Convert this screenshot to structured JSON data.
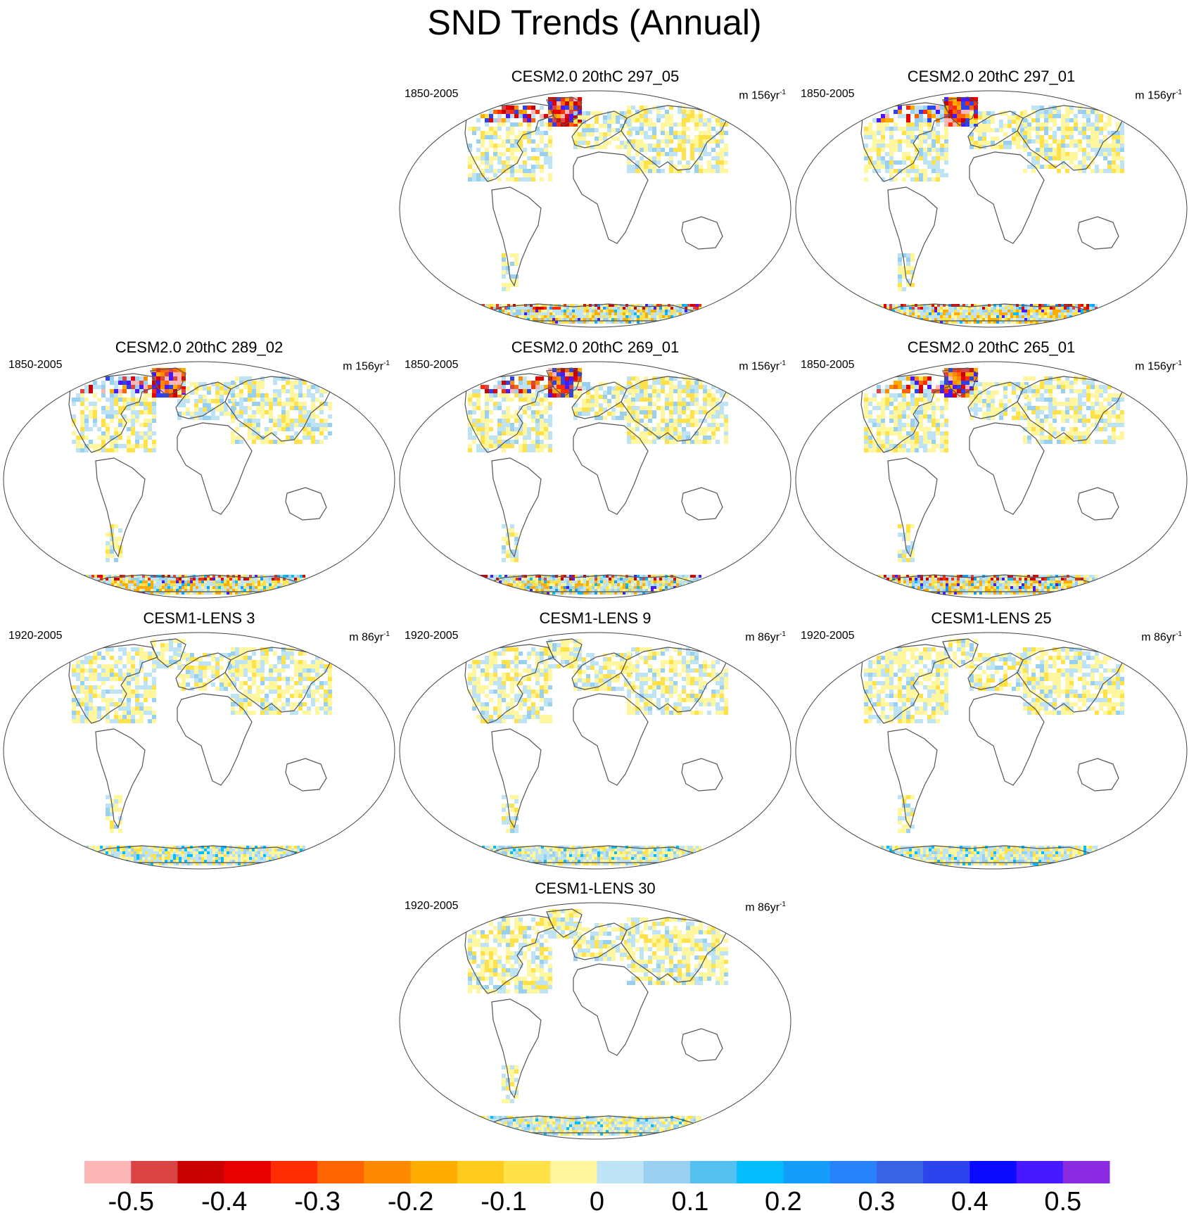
{
  "title": "SND Trends (Annual)",
  "chart_data": {
    "type": "heatmap",
    "title": "SND Trends (Annual)",
    "projection": "global map",
    "colorbar": {
      "colors": [
        "#fdb6b6",
        "#db4444",
        "#c80000",
        "#e60000",
        "#ff2d00",
        "#ff6400",
        "#ff8a00",
        "#ffac00",
        "#ffcb1e",
        "#ffe24a",
        "#fff6a0",
        "#bde3f5",
        "#9ad0ef",
        "#55c1f0",
        "#03bdfd",
        "#149dfa",
        "#2783fc",
        "#3863e4",
        "#2d43ee",
        "#0a0aff",
        "#4619ff",
        "#8a2be2"
      ],
      "tick_labels": [
        "-0.5",
        "-0.4",
        "-0.3",
        "-0.2",
        "-0.1",
        "0",
        "0.1",
        "0.2",
        "0.3",
        "0.4",
        "0.5"
      ],
      "range": [
        -0.55,
        0.55
      ]
    },
    "panels": [
      {
        "title": "CESM2.0 20thC 297_05",
        "period": "1850-2005",
        "units": "m 156yr",
        "exp": "-1",
        "ant": "strong"
      },
      {
        "title": "CESM2.0 20thC 297_01",
        "period": "1850-2005",
        "units": "m 156yr",
        "exp": "-1",
        "ant": "strong"
      },
      {
        "title": "CESM2.0 20thC 289_02",
        "period": "1850-2005",
        "units": "m 156yr",
        "exp": "-1",
        "ant": "strong"
      },
      {
        "title": "CESM2.0 20thC 269_01",
        "period": "1850-2005",
        "units": "m 156yr",
        "exp": "-1",
        "ant": "strong"
      },
      {
        "title": "CESM2.0 20thC 265_01",
        "period": "1850-2005",
        "units": "m 156yr",
        "exp": "-1",
        "ant": "strong"
      },
      {
        "title": "CESM1-LENS 3",
        "period": "1920-2005",
        "units": "m 86yr",
        "exp": "-1",
        "ant": "weak"
      },
      {
        "title": "CESM1-LENS 9",
        "period": "1920-2005",
        "units": "m 86yr",
        "exp": "-1",
        "ant": "weak"
      },
      {
        "title": "CESM1-LENS 25",
        "period": "1920-2005",
        "units": "m 86yr",
        "exp": "-1",
        "ant": "weak"
      },
      {
        "title": "CESM1-LENS 30",
        "period": "1920-2005",
        "units": "m 86yr",
        "exp": "-1",
        "ant": "weak"
      }
    ]
  }
}
